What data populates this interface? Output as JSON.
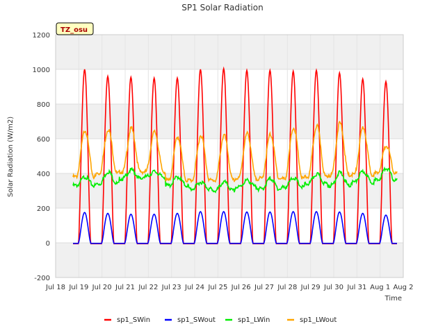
{
  "chart_data": {
    "type": "line",
    "title": "SP1 Solar Radiation",
    "xlabel": "Time",
    "ylabel": "Solar Radiation (W/m2)",
    "site_label": "TZ_osu",
    "ylim": [
      -200,
      1200
    ],
    "yticks": [
      -200,
      0,
      200,
      400,
      600,
      800,
      1000,
      1200
    ],
    "xlim": [
      "2024-07-18",
      "2024-08-02"
    ],
    "xtick_labels": [
      "Jul 18",
      "Jul 19",
      "Jul 20",
      "Jul 21",
      "Jul 22",
      "Jul 23",
      "Jul 24",
      "Jul 25",
      "Jul 26",
      "Jul 27",
      "Jul 28",
      "Jul 29",
      "Jul 30",
      "Jul 31",
      "Aug 1",
      "Aug 2"
    ],
    "grid": true,
    "legend_position": "bottom",
    "days": [
      "Jul 19",
      "Jul 20",
      "Jul 21",
      "Jul 22",
      "Jul 23",
      "Jul 24",
      "Jul 25",
      "Jul 26",
      "Jul 27",
      "Jul 28",
      "Jul 29",
      "Jul 30",
      "Jul 31",
      "Aug 1"
    ],
    "series": [
      {
        "name": "sp1_SWin",
        "color": "#ff0000",
        "metric": "daily_peak",
        "values": [
          1000,
          960,
          955,
          950,
          950,
          1000,
          1005,
          995,
          995,
          990,
          995,
          980,
          945,
          930
        ]
      },
      {
        "name": "sp1_SWout",
        "color": "#0000ff",
        "metric": "daily_peak",
        "values": [
          175,
          170,
          165,
          165,
          170,
          180,
          180,
          178,
          178,
          180,
          180,
          178,
          170,
          160
        ]
      },
      {
        "name": "sp1_LWin",
        "color": "#00ee00",
        "metric": "daily_range",
        "night_values": [
          330,
          340,
          370,
          380,
          330,
          310,
          300,
          320,
          310,
          320,
          340,
          330,
          350,
          360
        ],
        "day_values": [
          380,
          410,
          420,
          410,
          380,
          350,
          350,
          360,
          370,
          375,
          395,
          405,
          410,
          430
        ]
      },
      {
        "name": "sp1_LWout",
        "color": "#ffa500",
        "metric": "daily_range",
        "night_values": [
          380,
          400,
          410,
          410,
          360,
          360,
          360,
          370,
          370,
          370,
          380,
          390,
          395,
          400
        ],
        "day_values": [
          650,
          655,
          660,
          640,
          610,
          620,
          620,
          630,
          625,
          665,
          675,
          690,
          665,
          560
        ]
      }
    ]
  }
}
